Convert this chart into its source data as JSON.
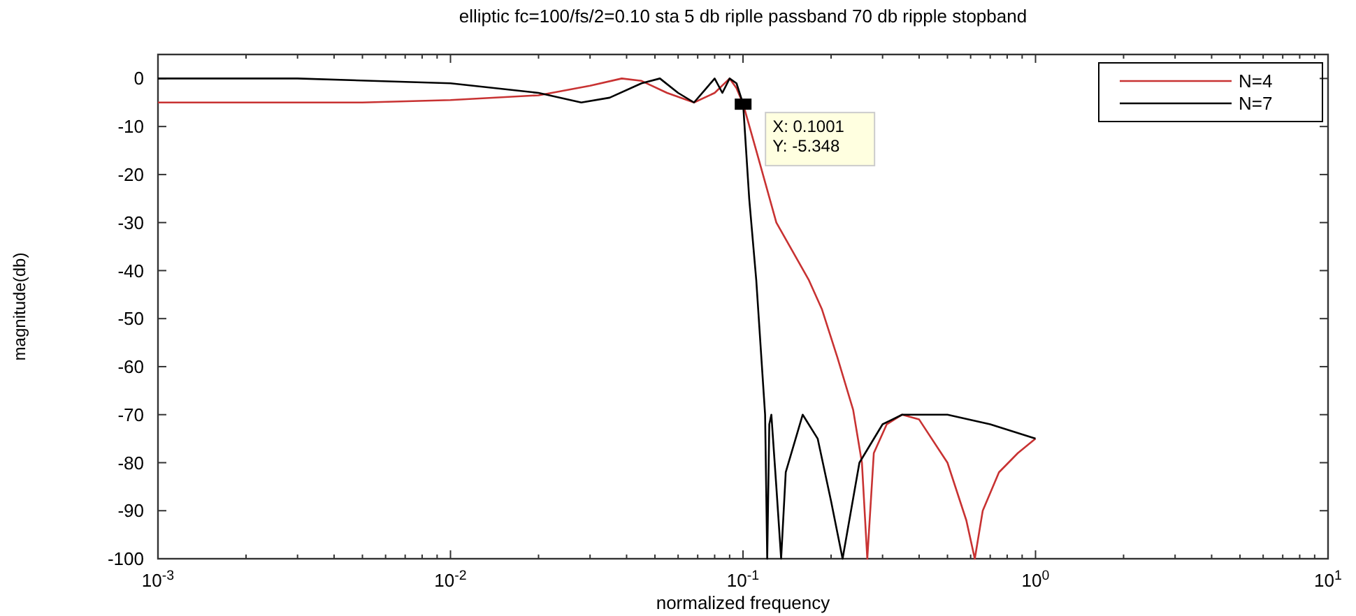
{
  "chart_data": {
    "type": "line",
    "title": "elliptic fc=100/fs/2=0.10 sta 5 db riplle passband 70 db ripple stopband",
    "xlabel": "normalized frequency",
    "ylabel": "magnitude(db)",
    "log": "x",
    "grid": false,
    "legend": "top right",
    "line_style": "solid",
    "xlim": [
      0.001,
      10
    ],
    "xticks": [
      {
        "value": 0.001,
        "label": "10$^{-3}$"
      },
      {
        "value": 0.01,
        "label": "10$^{-2}$"
      },
      {
        "value": 0.1,
        "label": "10$^{-1}$"
      },
      {
        "value": 1,
        "label": "10$^{0}$"
      },
      {
        "value": 10,
        "label": "10$^{1}$"
      }
    ],
    "ylim": [
      -100,
      5
    ],
    "yticks": [
      -100,
      -90,
      -80,
      -70,
      -60,
      -50,
      -40,
      -30,
      -20,
      -10,
      0
    ],
    "annotations": [
      {
        "text": "X: 0.1001\nY: -5.348",
        "x": 0.1001,
        "y": -5.348
      }
    ],
    "series": [
      {
        "name": "N=4",
        "color": "#c83232",
        "x": [
          0.001,
          0.005,
          0.01,
          0.02,
          0.03,
          0.0385,
          0.045,
          0.055,
          0.068,
          0.08,
          0.09,
          0.095,
          0.1001,
          0.111,
          0.13,
          0.168,
          0.186,
          0.21,
          0.238,
          0.255,
          0.266,
          0.28,
          0.31,
          0.35,
          0.4,
          0.5,
          0.58,
          0.62,
          0.66,
          0.75,
          0.87,
          1.0
        ],
        "values": [
          -5,
          -5,
          -4.5,
          -3.5,
          -1.5,
          0,
          -0.5,
          -3,
          -5,
          -3,
          0,
          -2,
          -5.3,
          -15,
          -30,
          -42,
          -48,
          -58,
          -69,
          -80,
          -100,
          -78,
          -72,
          -70,
          -71,
          -80,
          -92,
          -100,
          -90,
          -82,
          -78,
          -75
        ]
      },
      {
        "name": "N=7",
        "color": "#000000",
        "x": [
          0.001,
          0.003,
          0.01,
          0.02,
          0.028,
          0.035,
          0.045,
          0.052,
          0.06,
          0.068,
          0.075,
          0.08,
          0.085,
          0.09,
          0.095,
          0.1001,
          0.105,
          0.111,
          0.119,
          0.121,
          0.123,
          0.125,
          0.13,
          0.135,
          0.14,
          0.16,
          0.18,
          0.2,
          0.219,
          0.25,
          0.3,
          0.35,
          0.5,
          0.7,
          1.0
        ],
        "values": [
          0,
          0,
          -1,
          -3,
          -5,
          -4,
          -1,
          0,
          -3,
          -5,
          -2,
          0,
          -3,
          0,
          -1,
          -5.3,
          -25,
          -42,
          -70,
          -100,
          -72,
          -70,
          -85,
          -100,
          -82,
          -70,
          -75,
          -88,
          -100,
          -80,
          -72,
          -70,
          -70,
          -72,
          -75
        ]
      }
    ]
  }
}
